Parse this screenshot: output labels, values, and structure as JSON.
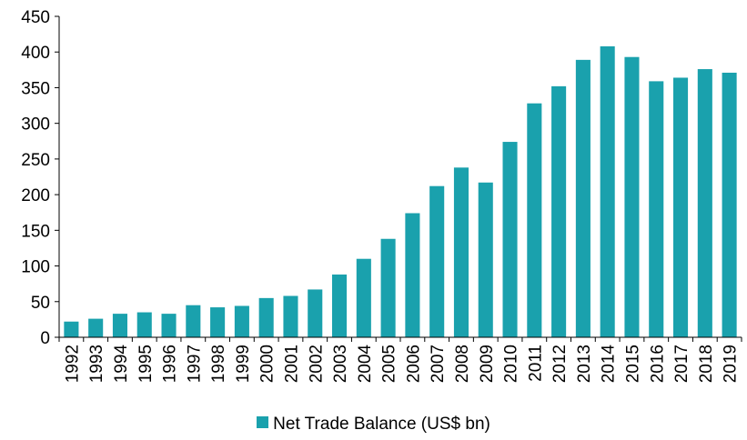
{
  "chart_data": {
    "type": "bar",
    "categories": [
      "1992",
      "1993",
      "1994",
      "1995",
      "1996",
      "1997",
      "1998",
      "1999",
      "2000",
      "2001",
      "2002",
      "2003",
      "2004",
      "2005",
      "2006",
      "2007",
      "2008",
      "2009",
      "2010",
      "2011",
      "2012",
      "2013",
      "2014",
      "2015",
      "2016",
      "2017",
      "2018",
      "2019"
    ],
    "series": [
      {
        "name": "Net Trade Balance (US$ bn)",
        "values": [
          22,
          26,
          33,
          35,
          33,
          45,
          42,
          44,
          55,
          58,
          67,
          88,
          110,
          138,
          174,
          212,
          238,
          217,
          274,
          328,
          352,
          389,
          408,
          393,
          359,
          364,
          376,
          371
        ]
      }
    ],
    "yticks": [
      0,
      50,
      100,
      150,
      200,
      250,
      300,
      350,
      400,
      450
    ],
    "ylim": [
      0,
      450
    ],
    "grid": false,
    "legend_position": "bottom",
    "bar_color": "#1aa1ad"
  }
}
